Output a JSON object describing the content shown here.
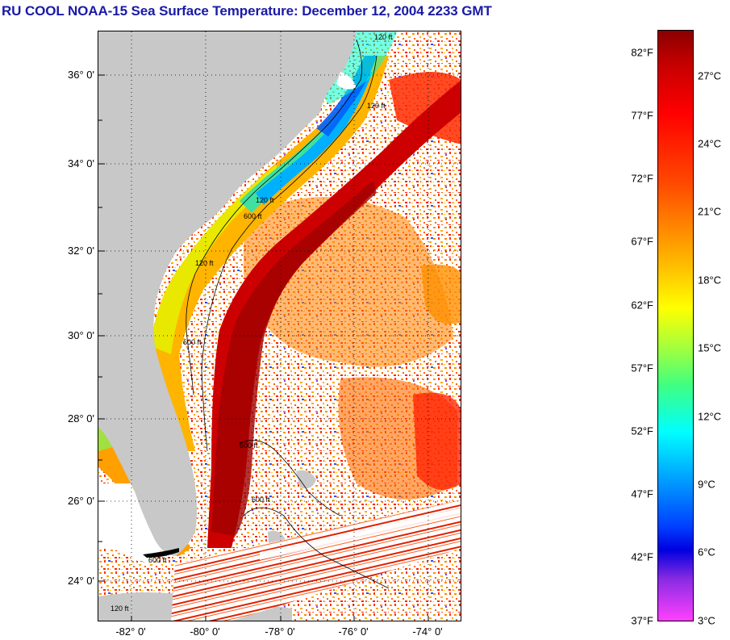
{
  "title": "RU COOL  NOAA-15  Sea Surface Temperature:  December 12, 2004 2233 GMT",
  "map": {
    "lat_labels": [
      "36° 0'",
      "34° 0'",
      "32° 0'",
      "30° 0'",
      "28° 0'",
      "26° 0'",
      "24° 0'"
    ],
    "lon_labels": [
      "-82° 0'",
      "-80° 0'",
      "-78° 0'",
      "-76° 0'",
      "-74° 0'"
    ],
    "land_color": "#c8c8c8",
    "contour_labels": [
      "120 ft",
      "120 ft",
      "120 ft",
      "600 ft",
      "120 ft",
      "600 ft",
      "600 ft",
      "600 ft",
      "600 ft",
      "120 ft"
    ]
  },
  "colorbar": {
    "fahrenheit_ticks": [
      "82°F",
      "77°F",
      "72°F",
      "67°F",
      "62°F",
      "57°F",
      "52°F",
      "47°F",
      "42°F",
      "37°F"
    ],
    "celsius_ticks": [
      "27°C",
      "24°C",
      "21°C",
      "18°C",
      "15°C",
      "12°C",
      "9°C",
      "6°C",
      "3°C"
    ]
  }
}
